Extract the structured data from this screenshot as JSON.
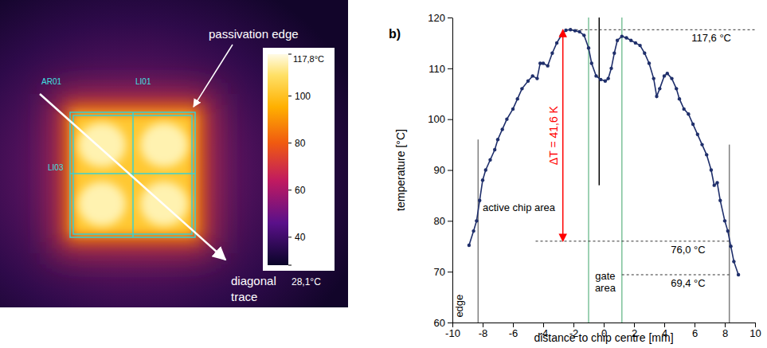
{
  "thermal_image": {
    "annotations": [
      "passivation edge",
      "diagonal trace"
    ],
    "overlay_labels": [
      "AR01",
      "LI01",
      "LI03"
    ],
    "colorbar": {
      "range": [
        28.1,
        117.8
      ],
      "ticks": [
        {
          "value": 28.1,
          "label": "28,1°C"
        },
        40,
        60,
        80,
        100,
        {
          "value": 117.8,
          "label": "117,8°C"
        }
      ]
    }
  },
  "chart_data": {
    "type": "line",
    "title": "b)",
    "x_label": "distance to chip centre [mm]",
    "y_label": "temperature [°C]",
    "xlim": [
      -10,
      10
    ],
    "xticks": [
      -10,
      -8,
      -6,
      -4,
      -2,
      0,
      2,
      4,
      6,
      8,
      10
    ],
    "ylim": [
      60,
      120
    ],
    "yticks": [
      60,
      70,
      80,
      90,
      100,
      110,
      120
    ],
    "color": "#1f2f6b",
    "marker": "circle",
    "line_style": "solid",
    "x": [
      -8.9,
      -8.6,
      -8.4,
      -8.2,
      -8.0,
      -7.8,
      -7.5,
      -7.2,
      -7.0,
      -6.7,
      -6.4,
      -6.0,
      -5.7,
      -5.4,
      -5.0,
      -4.7,
      -4.4,
      -4.2,
      -4.0,
      -3.7,
      -3.4,
      -3.1,
      -2.8,
      -2.5,
      -2.2,
      -1.9,
      -1.6,
      -1.3,
      -1.0,
      -0.8,
      -0.5,
      -0.2,
      0.1,
      0.3,
      0.5,
      0.7,
      0.9,
      1.2,
      1.5,
      1.8,
      2.1,
      2.4,
      2.7,
      3.0,
      3.3,
      3.5,
      3.7,
      4.0,
      4.2,
      4.5,
      4.8,
      5.0,
      5.3,
      5.6,
      5.9,
      6.2,
      6.5,
      6.8,
      7.1,
      7.3,
      7.5,
      7.7,
      8.0,
      8.2,
      8.4,
      8.6,
      8.9
    ],
    "values": [
      75.2,
      78,
      80,
      84,
      88,
      90,
      92,
      94,
      96,
      98,
      100,
      102,
      104,
      106,
      107.5,
      108.5,
      108,
      111,
      111,
      110.5,
      113,
      115,
      116.5,
      117.5,
      117.6,
      117.4,
      117.2,
      116.5,
      114,
      111,
      108.5,
      107.8,
      107.5,
      108,
      110,
      113,
      115.5,
      116.3,
      116,
      115.5,
      115,
      114.5,
      113,
      111,
      108,
      104.5,
      106,
      108.5,
      109,
      108,
      106,
      104,
      102,
      101,
      99,
      97,
      95,
      93,
      90,
      87,
      87.5,
      84,
      80,
      78,
      75,
      72,
      69.4
    ],
    "hlines": [
      {
        "value": 117.6,
        "label": "117,6 °C",
        "xrange": [
          -2.5,
          10
        ]
      },
      {
        "value": 76.0,
        "label": "76,0 °C",
        "xrange": [
          -4.5,
          8.3
        ]
      },
      {
        "value": 69.4,
        "label": "69,4 °C",
        "xrange": [
          1.2,
          8.3
        ]
      }
    ],
    "vlines": [
      {
        "value": -8.3,
        "yrange": [
          60,
          96
        ],
        "color": "#7f7f7f"
      },
      {
        "value": 8.3,
        "yrange": [
          60,
          95
        ],
        "color": "#7f7f7f"
      },
      {
        "value": -0.3,
        "yrange": [
          87,
          120
        ],
        "color": "#000000"
      },
      {
        "value": -1.0,
        "yrange": [
          60,
          120
        ],
        "color": "#7cc29a"
      },
      {
        "value": 1.2,
        "yrange": [
          60,
          120
        ],
        "color": "#7cc29a"
      }
    ],
    "annotations": [
      {
        "text": "edge",
        "x": -9.3,
        "y": 61
      },
      {
        "text": "active chip area",
        "x": -8.0,
        "y": 82
      },
      {
        "text": "gate area",
        "x": 0.1,
        "y": 68.5
      }
    ],
    "arrow": {
      "text": "ΔT = 41,6 K",
      "x": -2.7,
      "from": 117.6,
      "to": 76.0,
      "color": "#ff0000"
    }
  }
}
